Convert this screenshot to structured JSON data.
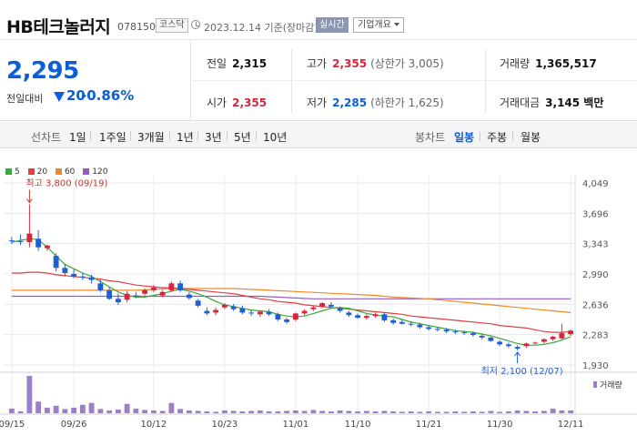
{
  "header": {
    "company": "HB테크놀러지",
    "code": "078150",
    "market": "코스닥",
    "date_text": "2023.12.14 기준(장마감)",
    "realtime_label": "실시간",
    "overview_label": "기업개요"
  },
  "price": {
    "current": "2,295",
    "change_label": "전일대비",
    "change_value": "20",
    "change_percent": "-0.86%",
    "direction": "down"
  },
  "stats": {
    "prev_close_label": "전일",
    "prev_close": "2,315",
    "high_label": "고가",
    "high": "2,355",
    "upper_limit": "(상한가 3,005)",
    "volume_label": "거래량",
    "volume": "1,365,517",
    "open_label": "시가",
    "open": "2,355",
    "low_label": "저가",
    "low": "2,285",
    "lower_limit": "(하한가 1,625)",
    "trade_value_label": "거래대금",
    "trade_value": "3,145 백만"
  },
  "period_bar": {
    "line_chart_label": "선차트",
    "line_periods": [
      "1일",
      "1주일",
      "3개월",
      "1년",
      "3년",
      "5년",
      "10년"
    ],
    "candle_label": "봉차트",
    "candle_periods": [
      "일봉",
      "주봉",
      "월봉"
    ],
    "candle_active": "일봉"
  },
  "colors": {
    "up": "#d4263c",
    "down": "#1f5fd6",
    "ma5": "#3aa83a",
    "ma20": "#e04040",
    "ma60": "#f08a24",
    "ma120": "#9b59c8",
    "volume": "#9b7fc8"
  },
  "legend": [
    {
      "label": "5",
      "color": "#3aa83a"
    },
    {
      "label": "20",
      "color": "#e04040"
    },
    {
      "label": "60",
      "color": "#f08a24"
    },
    {
      "label": "120",
      "color": "#9b59c8"
    }
  ],
  "chart_data": {
    "type": "candlestick",
    "y_ticks": [
      "4,049",
      "3,696",
      "3,343",
      "2,990",
      "2,636",
      "2,283",
      "1,930"
    ],
    "ylim": [
      1930,
      4049
    ],
    "x_ticks": [
      "09/15",
      "09/26",
      "10/12",
      "10/23",
      "11/01",
      "11/10",
      "11/21",
      "11/30",
      "12/11"
    ],
    "x_tick_index": [
      0,
      7,
      16,
      24,
      32,
      39,
      47,
      55,
      63
    ],
    "high_annotation": "최고 3,800 (09/19)",
    "low_annotation": "최저 2,100 (12/07)",
    "volume_label": "거래량",
    "candles": [
      [
        3380,
        3420,
        3340,
        3370
      ],
      [
        3370,
        3450,
        3330,
        3360
      ],
      [
        3360,
        3800,
        3300,
        3460
      ],
      [
        3400,
        3500,
        3260,
        3300
      ],
      [
        3290,
        3330,
        3260,
        3320
      ],
      [
        3200,
        3230,
        3020,
        3060
      ],
      [
        3060,
        3100,
        2960,
        3000
      ],
      [
        2990,
        3040,
        2940,
        2960
      ],
      [
        2960,
        3000,
        2920,
        2950
      ],
      [
        2950,
        2980,
        2880,
        2920
      ],
      [
        2880,
        2920,
        2780,
        2800
      ],
      [
        2800,
        2840,
        2690,
        2700
      ],
      [
        2700,
        2760,
        2630,
        2660
      ],
      [
        2690,
        2790,
        2660,
        2760
      ],
      [
        2740,
        2780,
        2710,
        2730
      ],
      [
        2760,
        2820,
        2740,
        2800
      ],
      [
        2800,
        2860,
        2780,
        2830
      ],
      [
        2740,
        2800,
        2720,
        2780
      ],
      [
        2800,
        2900,
        2780,
        2880
      ],
      [
        2880,
        2910,
        2780,
        2800
      ],
      [
        2750,
        2780,
        2690,
        2710
      ],
      [
        2680,
        2700,
        2600,
        2620
      ],
      [
        2560,
        2600,
        2510,
        2530
      ],
      [
        2540,
        2600,
        2510,
        2570
      ],
      [
        2600,
        2650,
        2580,
        2630
      ],
      [
        2610,
        2640,
        2560,
        2580
      ],
      [
        2590,
        2620,
        2520,
        2540
      ],
      [
        2540,
        2570,
        2500,
        2530
      ],
      [
        2520,
        2560,
        2490,
        2550
      ],
      [
        2550,
        2580,
        2500,
        2520
      ],
      [
        2520,
        2540,
        2440,
        2460
      ],
      [
        2460,
        2480,
        2410,
        2430
      ],
      [
        2460,
        2540,
        2440,
        2530
      ],
      [
        2530,
        2580,
        2510,
        2560
      ],
      [
        2580,
        2620,
        2560,
        2600
      ],
      [
        2610,
        2660,
        2590,
        2650
      ],
      [
        2630,
        2660,
        2590,
        2610
      ],
      [
        2590,
        2610,
        2540,
        2560
      ],
      [
        2540,
        2560,
        2490,
        2510
      ],
      [
        2510,
        2530,
        2470,
        2480
      ],
      [
        2480,
        2520,
        2460,
        2500
      ],
      [
        2500,
        2540,
        2480,
        2520
      ],
      [
        2520,
        2540,
        2430,
        2450
      ],
      [
        2450,
        2470,
        2400,
        2420
      ],
      [
        2430,
        2460,
        2400,
        2410
      ],
      [
        2410,
        2440,
        2380,
        2400
      ],
      [
        2400,
        2420,
        2350,
        2370
      ],
      [
        2370,
        2390,
        2330,
        2350
      ],
      [
        2350,
        2370,
        2320,
        2340
      ],
      [
        2340,
        2360,
        2300,
        2320
      ],
      [
        2320,
        2340,
        2290,
        2310
      ],
      [
        2310,
        2330,
        2280,
        2300
      ],
      [
        2300,
        2320,
        2260,
        2280
      ],
      [
        2270,
        2290,
        2230,
        2250
      ],
      [
        2250,
        2260,
        2200,
        2210
      ],
      [
        2200,
        2220,
        2150,
        2170
      ],
      [
        2170,
        2190,
        2130,
        2150
      ],
      [
        2140,
        2160,
        2100,
        2120
      ],
      [
        2150,
        2190,
        2130,
        2180
      ],
      [
        2180,
        2200,
        2170,
        2190
      ],
      [
        2200,
        2240,
        2180,
        2230
      ],
      [
        2230,
        2270,
        2210,
        2260
      ],
      [
        2240,
        2410,
        2230,
        2300
      ],
      [
        2290,
        2340,
        2270,
        2330
      ]
    ],
    "ma5": [
      3360,
      3380,
      3400,
      3390,
      3300,
      3200,
      3100,
      3050,
      3000,
      2960,
      2900,
      2840,
      2780,
      2740,
      2720,
      2720,
      2740,
      2760,
      2790,
      2810,
      2790,
      2760,
      2720,
      2670,
      2630,
      2610,
      2590,
      2570,
      2560,
      2550,
      2520,
      2500,
      2490,
      2500,
      2530,
      2560,
      2590,
      2600,
      2590,
      2560,
      2530,
      2510,
      2500,
      2490,
      2460,
      2430,
      2410,
      2390,
      2370,
      2350,
      2330,
      2320,
      2310,
      2290,
      2270,
      2240,
      2210,
      2180,
      2160,
      2160,
      2170,
      2190,
      2220,
      2260
    ],
    "ma20": [
      3000,
      3000,
      3010,
      3010,
      3000,
      2980,
      2970,
      2960,
      2950,
      2940,
      2930,
      2910,
      2900,
      2880,
      2860,
      2850,
      2840,
      2830,
      2830,
      2820,
      2810,
      2800,
      2790,
      2780,
      2770,
      2760,
      2740,
      2720,
      2700,
      2690,
      2670,
      2660,
      2650,
      2630,
      2620,
      2610,
      2600,
      2590,
      2580,
      2570,
      2560,
      2550,
      2540,
      2530,
      2520,
      2500,
      2490,
      2480,
      2470,
      2460,
      2450,
      2440,
      2430,
      2420,
      2410,
      2390,
      2380,
      2370,
      2360,
      2340,
      2320,
      2310,
      2310,
      2320
    ],
    "ma60": [
      2800,
      2800,
      2800,
      2800,
      2800,
      2800,
      2800,
      2800,
      2800,
      2800,
      2800,
      2800,
      2800,
      2800,
      2800,
      2805,
      2810,
      2815,
      2820,
      2820,
      2820,
      2820,
      2820,
      2820,
      2820,
      2820,
      2815,
      2810,
      2805,
      2800,
      2795,
      2790,
      2785,
      2780,
      2775,
      2770,
      2765,
      2760,
      2755,
      2750,
      2745,
      2740,
      2730,
      2720,
      2715,
      2710,
      2705,
      2700,
      2690,
      2680,
      2670,
      2660,
      2650,
      2640,
      2630,
      2620,
      2610,
      2600,
      2590,
      2580,
      2570,
      2560,
      2550,
      2540
    ],
    "ma120": [
      2730,
      2730,
      2730,
      2730,
      2730,
      2730,
      2730,
      2730,
      2730,
      2730,
      2730,
      2730,
      2730,
      2730,
      2730,
      2730,
      2730,
      2730,
      2730,
      2730,
      2730,
      2730,
      2730,
      2730,
      2730,
      2730,
      2730,
      2730,
      2730,
      2725,
      2720,
      2715,
      2710,
      2705,
      2700,
      2700,
      2700,
      2700,
      2700,
      2700,
      2700,
      2700,
      2700,
      2700,
      2700,
      2700,
      2700,
      2700,
      2700,
      2700,
      2700,
      2700,
      2700,
      2700,
      2700,
      2700,
      2700,
      2700,
      2700,
      2700,
      2700,
      2700,
      2700,
      2700
    ],
    "volume": [
      1.0,
      0.4,
      8.0,
      2.5,
      1.2,
      1.6,
      0.9,
      1.2,
      1.8,
      2.2,
      0.9,
      0.6,
      0.8,
      2.0,
      1.0,
      0.7,
      0.6,
      0.5,
      2.2,
      0.9,
      0.6,
      0.5,
      0.4,
      0.3,
      0.6,
      0.5,
      0.4,
      0.5,
      0.6,
      0.4,
      0.4,
      0.5,
      0.6,
      0.5,
      0.7,
      0.5,
      0.4,
      0.6,
      0.5,
      0.4,
      0.5,
      0.4,
      0.5,
      0.4,
      0.3,
      0.4,
      0.3,
      0.4,
      0.3,
      0.3,
      0.4,
      0.3,
      0.4,
      0.3,
      0.5,
      0.3,
      0.4,
      0.6,
      0.5,
      0.4,
      0.5,
      1.0,
      0.6,
      0.6
    ]
  }
}
